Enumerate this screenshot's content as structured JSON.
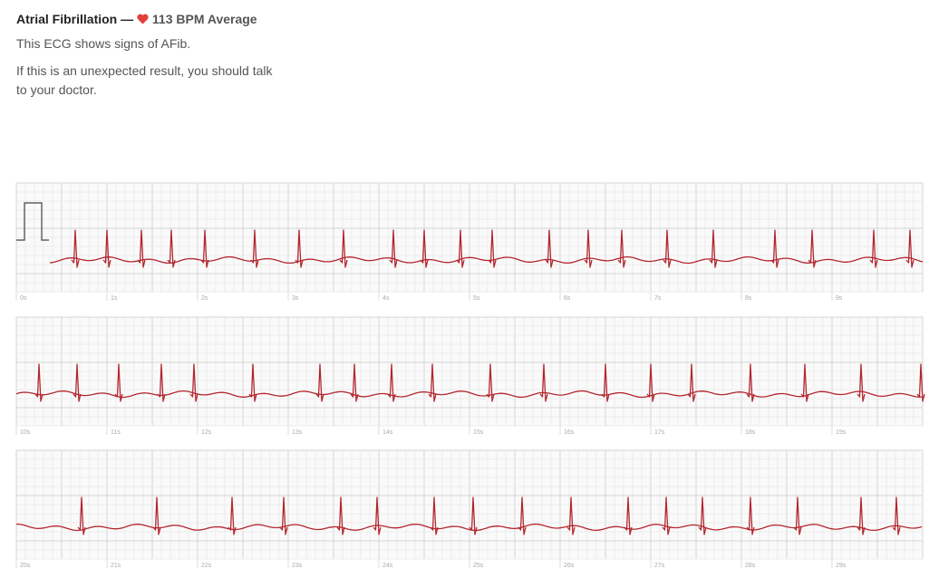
{
  "header": {
    "title": "Atrial Fibrillation —",
    "average": "113 BPM Average"
  },
  "summary": "This ECG shows signs of AFib.",
  "advice": "If this is an unexpected result, you should talk to your doctor.",
  "strips": [
    {
      "labels": [
        "0s",
        "1s",
        "2s",
        "3s",
        "4s",
        "5s",
        "6s",
        "7s",
        "8s",
        "9s"
      ],
      "beats": [
        0.65,
        1.0,
        1.38,
        1.71,
        2.08,
        2.63,
        3.12,
        3.61,
        4.16,
        4.5,
        4.9,
        5.25,
        5.88,
        6.31,
        6.68,
        7.18,
        7.69,
        8.37,
        8.78,
        9.46,
        9.86
      ]
    },
    {
      "labels": [
        "10s",
        "11s",
        "12s",
        "13s",
        "14s",
        "15s",
        "16s",
        "17s",
        "18s",
        "19s"
      ],
      "beats": [
        10.25,
        10.67,
        11.13,
        11.6,
        11.96,
        12.61,
        13.35,
        13.73,
        14.14,
        14.59,
        15.23,
        15.82,
        16.5,
        17.0,
        17.45,
        18.1,
        18.7,
        19.32,
        19.98
      ]
    },
    {
      "labels": [
        "20s",
        "21s",
        "22s",
        "23s",
        "24s",
        "25s",
        "26s",
        "27s",
        "28s",
        "29s"
      ],
      "beats": [
        20.72,
        21.55,
        22.38,
        22.95,
        23.58,
        23.98,
        24.61,
        25.04,
        25.58,
        26.12,
        26.75,
        27.17,
        27.57,
        28.1,
        28.62,
        29.32,
        29.71
      ]
    }
  ]
}
